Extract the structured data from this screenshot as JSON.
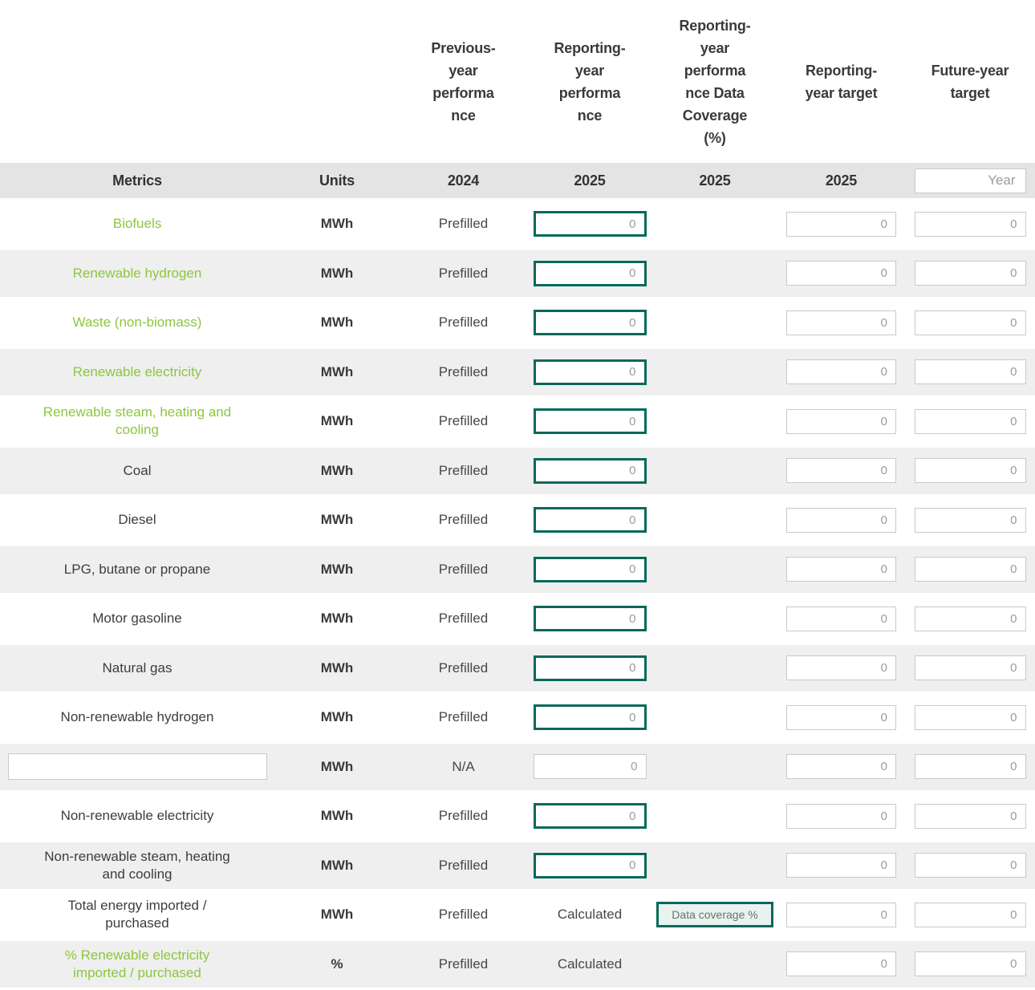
{
  "colors": {
    "accent_green": "#8dc63f",
    "accent_teal": "#07695a",
    "header_band": "#e4e4e4",
    "row_alt": "#efefef",
    "text_dark": "#3a3a3a",
    "input_border_gray": "#c9c9c9"
  },
  "headers": {
    "previous": "Previous-\nyear\nperforma\nnce",
    "reporting": "Reporting-\nyear\nperforma\nnce",
    "coverage": "Reporting-\nyear\nperforma\nnce Data\nCoverage\n(%)",
    "target": "Reporting-\nyear target",
    "future": "Future-year\ntarget"
  },
  "subheader": {
    "metrics": "Metrics",
    "units": "Units",
    "previous_year": "2024",
    "reporting_year": "2025",
    "coverage_year": "2025",
    "target_year": "2025",
    "future_year_placeholder": "Year"
  },
  "rows": [
    {
      "metric": "Biofuels",
      "style": "green",
      "units": "MWh",
      "previous": "Prefilled",
      "reporting": {
        "kind": "input-emphasis",
        "placeholder": "0"
      },
      "coverage": null,
      "target_placeholder": "0",
      "future_placeholder": "0"
    },
    {
      "metric": "Renewable hydrogen",
      "style": "green",
      "units": "MWh",
      "previous": "Prefilled",
      "reporting": {
        "kind": "input-emphasis",
        "placeholder": "0"
      },
      "coverage": null,
      "target_placeholder": "0",
      "future_placeholder": "0"
    },
    {
      "metric": "Waste (non-biomass)",
      "style": "green",
      "units": "MWh",
      "previous": "Prefilled",
      "reporting": {
        "kind": "input-emphasis",
        "placeholder": "0"
      },
      "coverage": null,
      "target_placeholder": "0",
      "future_placeholder": "0"
    },
    {
      "metric": "Renewable electricity",
      "style": "green",
      "units": "MWh",
      "previous": "Prefilled",
      "reporting": {
        "kind": "input-emphasis",
        "placeholder": "0"
      },
      "coverage": null,
      "target_placeholder": "0",
      "future_placeholder": "0"
    },
    {
      "metric": "Renewable steam, heating and\ncooling",
      "style": "green",
      "units": "MWh",
      "previous": "Prefilled",
      "reporting": {
        "kind": "input-emphasis",
        "placeholder": "0"
      },
      "coverage": null,
      "target_placeholder": "0",
      "future_placeholder": "0"
    },
    {
      "metric": "Coal",
      "style": "dark",
      "units": "MWh",
      "previous": "Prefilled",
      "reporting": {
        "kind": "input-emphasis",
        "placeholder": "0"
      },
      "coverage": null,
      "target_placeholder": "0",
      "future_placeholder": "0"
    },
    {
      "metric": "Diesel",
      "style": "dark",
      "units": "MWh",
      "previous": "Prefilled",
      "reporting": {
        "kind": "input-emphasis",
        "placeholder": "0"
      },
      "coverage": null,
      "target_placeholder": "0",
      "future_placeholder": "0"
    },
    {
      "metric": "LPG, butane or propane",
      "style": "dark",
      "units": "MWh",
      "previous": "Prefilled",
      "reporting": {
        "kind": "input-emphasis",
        "placeholder": "0"
      },
      "coverage": null,
      "target_placeholder": "0",
      "future_placeholder": "0"
    },
    {
      "metric": "Motor gasoline",
      "style": "dark",
      "units": "MWh",
      "previous": "Prefilled",
      "reporting": {
        "kind": "input-emphasis",
        "placeholder": "0"
      },
      "coverage": null,
      "target_placeholder": "0",
      "future_placeholder": "0"
    },
    {
      "metric": "Natural gas",
      "style": "dark",
      "units": "MWh",
      "previous": "Prefilled",
      "reporting": {
        "kind": "input-emphasis",
        "placeholder": "0"
      },
      "coverage": null,
      "target_placeholder": "0",
      "future_placeholder": "0"
    },
    {
      "metric": "Non-renewable hydrogen",
      "style": "dark",
      "units": "MWh",
      "previous": "Prefilled",
      "reporting": {
        "kind": "input-emphasis",
        "placeholder": "0"
      },
      "coverage": null,
      "target_placeholder": "0",
      "future_placeholder": "0"
    },
    {
      "metric": "",
      "metric_input": true,
      "metric_placeholder": "",
      "style": "dark",
      "units": "MWh",
      "previous": "N/A",
      "reporting": {
        "kind": "input-plain",
        "placeholder": "0"
      },
      "coverage": null,
      "target_placeholder": "0",
      "future_placeholder": "0"
    },
    {
      "metric": "Non-renewable electricity",
      "style": "dark",
      "units": "MWh",
      "previous": "Prefilled",
      "reporting": {
        "kind": "input-emphasis",
        "placeholder": "0"
      },
      "coverage": null,
      "target_placeholder": "0",
      "future_placeholder": "0"
    },
    {
      "metric": "Non-renewable steam, heating\nand cooling",
      "style": "dark",
      "units": "MWh",
      "previous": "Prefilled",
      "reporting": {
        "kind": "input-emphasis",
        "placeholder": "0"
      },
      "coverage": null,
      "target_placeholder": "0",
      "future_placeholder": "0"
    },
    {
      "metric": "Total energy imported /\npurchased",
      "style": "dark",
      "units": "MWh",
      "previous": "Prefilled",
      "reporting": {
        "kind": "text",
        "value": "Calculated"
      },
      "coverage": {
        "label": "Data coverage %"
      },
      "target_placeholder": "0",
      "future_placeholder": "0"
    },
    {
      "metric": "% Renewable electricity\nimported / purchased",
      "style": "green",
      "units": "%",
      "previous": "Prefilled",
      "reporting": {
        "kind": "text",
        "value": "Calculated"
      },
      "coverage": null,
      "target_placeholder": "0",
      "future_placeholder": "0"
    }
  ]
}
